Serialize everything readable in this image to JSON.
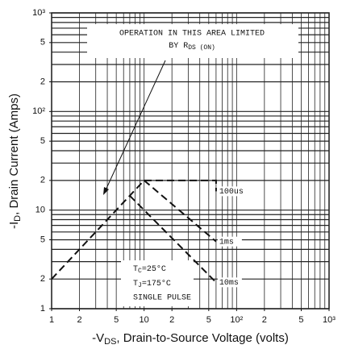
{
  "chart_data": {
    "type": "line",
    "log_x": true,
    "log_y": true,
    "grid": true,
    "xlim": [
      1,
      1000
    ],
    "ylim": [
      1,
      1000
    ],
    "xticks": [
      1,
      2,
      5,
      10,
      {
        "value": 20,
        "label": "2"
      },
      {
        "value": 50,
        "label": "5"
      },
      {
        "value": 100,
        "label": "10²"
      },
      {
        "value": 200,
        "label": "2"
      },
      {
        "value": 500,
        "label": "5"
      },
      {
        "value": 1000,
        "label": "10³"
      }
    ],
    "yticks": [
      1,
      2,
      5,
      10,
      {
        "value": 20,
        "label": "2"
      },
      {
        "value": 50,
        "label": "5"
      },
      {
        "value": 100,
        "label": "10²"
      },
      {
        "value": 200,
        "label": "2"
      },
      {
        "value": 500,
        "label": "5"
      },
      {
        "value": 1000,
        "label": "10³"
      }
    ],
    "xgrid": [
      1,
      2,
      3,
      4,
      5,
      6,
      7,
      8,
      9,
      10,
      20,
      30,
      40,
      50,
      60,
      70,
      80,
      90,
      100,
      200,
      300,
      400,
      500,
      600,
      700,
      800,
      900,
      1000
    ],
    "ygrid": [
      1,
      2,
      3,
      4,
      5,
      6,
      7,
      8,
      9,
      10,
      20,
      30,
      40,
      50,
      60,
      70,
      80,
      90,
      100,
      200,
      300,
      400,
      500,
      600,
      700,
      800,
      900,
      1000
    ],
    "x_label": {
      "prefix": "-V",
      "sub": "DS",
      "rest": ", Drain-to-Source Voltage (volts)"
    },
    "y_label": {
      "prefix": "-I",
      "sub": "D",
      "rest": ", Drain Current (Amps)"
    },
    "annotations": {
      "line1": "OPERATION IN THIS AREA LIMITED",
      "line2_prefix": "BY R",
      "line2_sub": "DS (ON)",
      "tc_prefix": "T",
      "tc_sub": "C",
      "tc_rest": "=25°C",
      "tj_prefix": "T",
      "tj_sub": "J",
      "tj_rest": "=175°C",
      "pulse": "SINGLE PULSE"
    },
    "series": [
      {
        "name": "100us",
        "color": "#111111",
        "x": [
          1,
          10,
          60,
          60
        ],
        "values": [
          2,
          20,
          20,
          15.5
        ]
      },
      {
        "name": "1ms",
        "color": "#111111",
        "x": [
          10,
          60
        ],
        "values": [
          20,
          4.8
        ]
      },
      {
        "name": "10ms",
        "color": "#111111",
        "x": [
          7,
          60
        ],
        "values": [
          14,
          1.85
        ]
      }
    ]
  }
}
